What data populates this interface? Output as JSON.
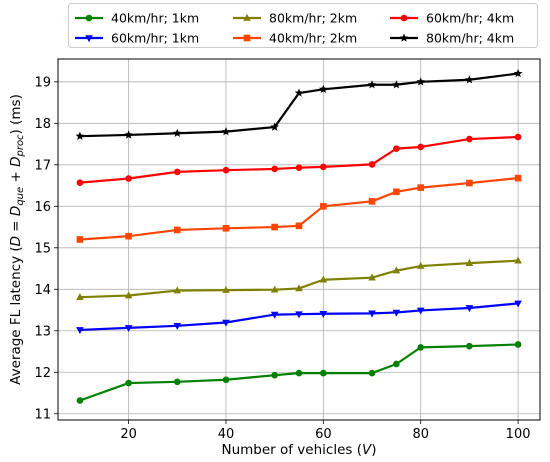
{
  "chart_data": {
    "type": "line",
    "title": "",
    "xlabel_parts": [
      "Number of vehicles (",
      "V",
      ")"
    ],
    "ylabel_parts": [
      {
        "t": "Average FL latency (",
        "s": "n"
      },
      {
        "t": "D",
        "s": "i"
      },
      {
        "t": " = ",
        "s": "n"
      },
      {
        "t": "D",
        "s": "i"
      },
      {
        "t": "que",
        "s": "sub"
      },
      {
        "t": " + ",
        "s": "n"
      },
      {
        "t": "D",
        "s": "i"
      },
      {
        "t": "proc",
        "s": "sub"
      },
      {
        "t": ") (ms)",
        "s": "n"
      }
    ],
    "xlim": [
      5.5,
      104.5
    ],
    "ylim": [
      10.85,
      19.55
    ],
    "xticks": [
      20,
      40,
      60,
      80,
      100
    ],
    "yticks": [
      11,
      12,
      13,
      14,
      15,
      16,
      17,
      18,
      19
    ],
    "grid": true,
    "legend_position": "top, outside plot area",
    "x": [
      10,
      20,
      30,
      40,
      50,
      55,
      60,
      70,
      75,
      80,
      90,
      100
    ],
    "series": [
      {
        "name": "40km/hr; 1km",
        "color": "#008000",
        "marker": "circle",
        "values": [
          11.32,
          11.74,
          11.77,
          11.82,
          11.93,
          11.98,
          11.98,
          11.98,
          12.2,
          12.6,
          12.63,
          12.67
        ]
      },
      {
        "name": "60km/hr; 1km",
        "color": "#0000ff",
        "marker": "triangle-down",
        "values": [
          13.02,
          13.07,
          13.12,
          13.2,
          13.39,
          13.4,
          13.41,
          13.42,
          13.44,
          13.49,
          13.55,
          13.66
        ]
      },
      {
        "name": "80km/hr; 2km",
        "color": "#808000",
        "marker": "triangle-up",
        "values": [
          13.81,
          13.85,
          13.97,
          13.98,
          13.99,
          14.02,
          14.23,
          14.28,
          14.45,
          14.56,
          14.63,
          14.69
        ]
      },
      {
        "name": "40km/hr; 2km",
        "color": "#ff4500",
        "marker": "square",
        "values": [
          15.2,
          15.28,
          15.43,
          15.47,
          15.5,
          15.53,
          16.0,
          16.12,
          16.35,
          16.45,
          16.56,
          16.68
        ]
      },
      {
        "name": "60km/hr; 4km",
        "color": "#ff0000",
        "marker": "circle",
        "values": [
          16.57,
          16.67,
          16.83,
          16.87,
          16.9,
          16.93,
          16.95,
          17.01,
          17.39,
          17.43,
          17.62,
          17.67
        ]
      },
      {
        "name": "80km/hr; 4km",
        "color": "#000000",
        "marker": "star",
        "values": [
          17.69,
          17.72,
          17.76,
          17.8,
          17.91,
          18.73,
          18.82,
          18.93,
          18.93,
          19.0,
          19.05,
          19.2
        ]
      }
    ],
    "legend_order": [
      [
        0,
        2,
        4
      ],
      [
        1,
        3,
        5
      ]
    ]
  }
}
